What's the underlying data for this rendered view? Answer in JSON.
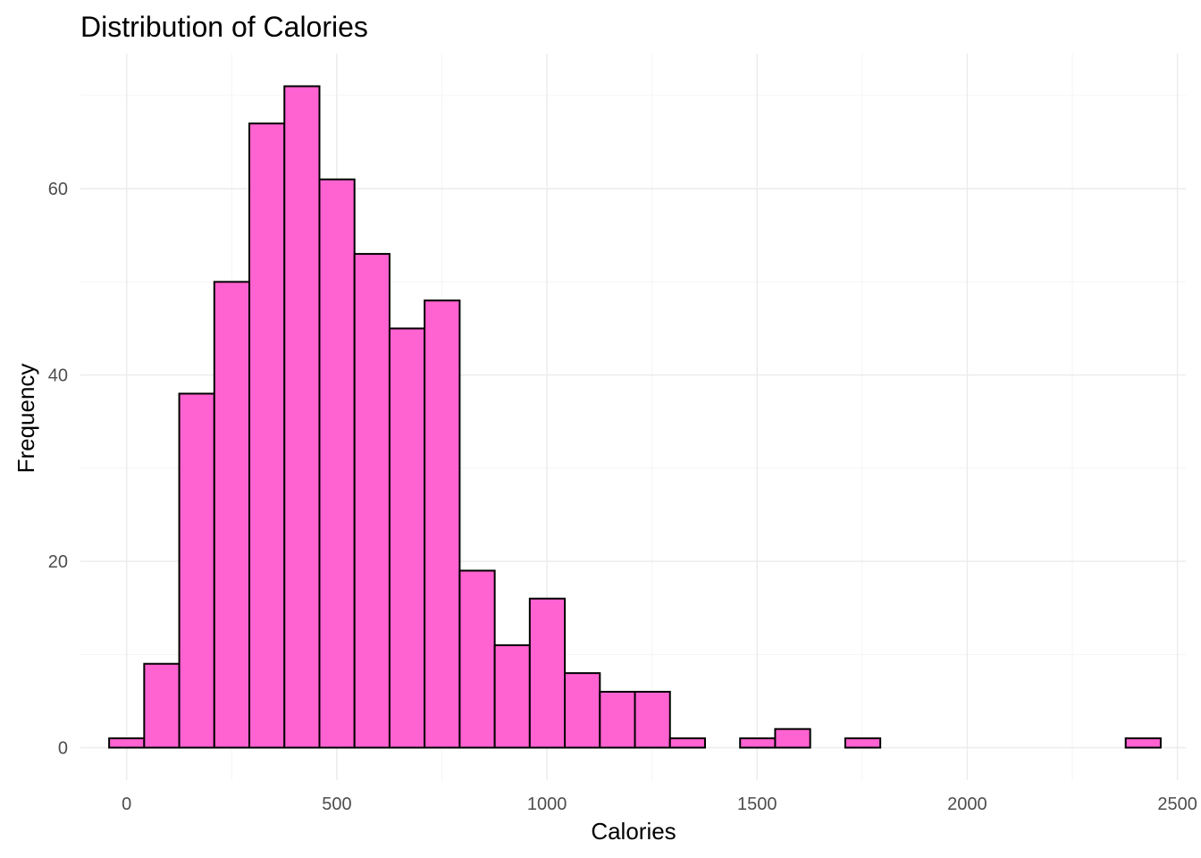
{
  "chart_data": {
    "type": "bar",
    "title": "Distribution of Calories",
    "xlabel": "Calories",
    "ylabel": "Frequency",
    "xlim": [
      -110,
      2520
    ],
    "ylim": [
      -3.5,
      74.5
    ],
    "x_ticks": [
      0,
      500,
      1000,
      1500,
      2000,
      2500
    ],
    "y_ticks": [
      0,
      20,
      40,
      60
    ],
    "grid": true,
    "bin_width": 83.4,
    "bin_start": -41.7,
    "values": [
      1,
      9,
      38,
      50,
      67,
      71,
      61,
      53,
      45,
      48,
      19,
      11,
      16,
      8,
      6,
      6,
      1,
      0,
      1,
      2,
      0,
      1,
      0,
      0,
      0,
      0,
      0,
      0,
      0,
      1
    ],
    "colors": {
      "fill": "#ff62d1",
      "outline": "#000000",
      "grid_major": "#ebebeb",
      "grid_minor": "#f2f2f2"
    }
  }
}
